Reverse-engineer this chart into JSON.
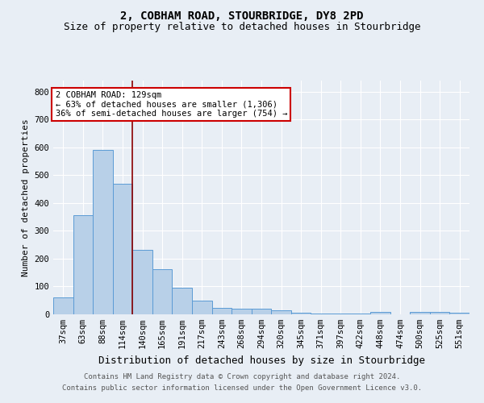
{
  "title": "2, COBHAM ROAD, STOURBRIDGE, DY8 2PD",
  "subtitle": "Size of property relative to detached houses in Stourbridge",
  "xlabel": "Distribution of detached houses by size in Stourbridge",
  "ylabel": "Number of detached properties",
  "categories": [
    "37sqm",
    "63sqm",
    "88sqm",
    "114sqm",
    "140sqm",
    "165sqm",
    "191sqm",
    "217sqm",
    "243sqm",
    "268sqm",
    "294sqm",
    "320sqm",
    "345sqm",
    "371sqm",
    "397sqm",
    "422sqm",
    "448sqm",
    "474sqm",
    "500sqm",
    "525sqm",
    "551sqm"
  ],
  "values": [
    60,
    355,
    590,
    468,
    232,
    162,
    95,
    48,
    22,
    20,
    20,
    14,
    5,
    3,
    4,
    4,
    8,
    1,
    9,
    8,
    7
  ],
  "bar_color": "#b8d0e8",
  "bar_edge_color": "#5b9bd5",
  "background_color": "#e8eef5",
  "grid_color": "#ffffff",
  "annotation_text": "2 COBHAM ROAD: 129sqm\n← 63% of detached houses are smaller (1,306)\n36% of semi-detached houses are larger (754) →",
  "annotation_box_color": "#ffffff",
  "annotation_box_edge_color": "#cc0000",
  "footer_line1": "Contains HM Land Registry data © Crown copyright and database right 2024.",
  "footer_line2": "Contains public sector information licensed under the Open Government Licence v3.0.",
  "ylim": [
    0,
    840
  ],
  "yticks": [
    0,
    100,
    200,
    300,
    400,
    500,
    600,
    700,
    800
  ],
  "title_fontsize": 10,
  "subtitle_fontsize": 9,
  "xlabel_fontsize": 9,
  "ylabel_fontsize": 8,
  "tick_fontsize": 7.5,
  "footer_fontsize": 6.5,
  "annotation_fontsize": 7.5,
  "vline_color": "#8b0000",
  "vline_x": 3.5
}
